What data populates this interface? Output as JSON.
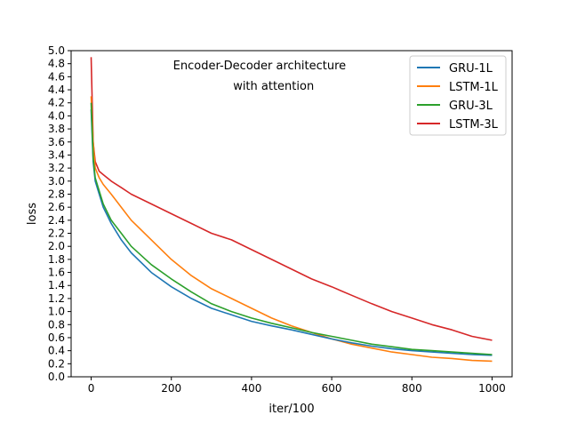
{
  "chart_data": {
    "type": "line",
    "title": "",
    "annotation_lines": [
      "Encoder-Decoder architecture",
      "with attention"
    ],
    "xlabel": "iter/100",
    "ylabel": "loss",
    "xlim": [
      -50,
      1050
    ],
    "ylim": [
      0,
      5.0
    ],
    "xticks": [
      0,
      200,
      400,
      600,
      800,
      1000
    ],
    "yticks": [
      0.0,
      0.2,
      0.4,
      0.6,
      0.8,
      1.0,
      1.2,
      1.4,
      1.6,
      1.8,
      2.0,
      2.2,
      2.4,
      2.6,
      2.8,
      3.0,
      3.2,
      3.4,
      3.6,
      3.8,
      4.0,
      4.2,
      4.4,
      4.6,
      4.8,
      5.0
    ],
    "grid": false,
    "legend_position": "top-right",
    "colors": {
      "GRU-1L": "#1f77b4",
      "LSTM-1L": "#ff7f0e",
      "GRU-3L": "#2ca02c",
      "LSTM-3L": "#d62728"
    },
    "x": [
      0,
      5,
      10,
      20,
      30,
      50,
      75,
      100,
      150,
      200,
      250,
      300,
      350,
      400,
      450,
      500,
      550,
      600,
      650,
      700,
      750,
      800,
      850,
      900,
      950,
      1000
    ],
    "series": [
      {
        "name": "GRU-1L",
        "values": [
          4.1,
          3.3,
          3.0,
          2.8,
          2.6,
          2.35,
          2.1,
          1.9,
          1.6,
          1.38,
          1.2,
          1.05,
          0.95,
          0.85,
          0.78,
          0.72,
          0.65,
          0.58,
          0.52,
          0.47,
          0.43,
          0.4,
          0.38,
          0.36,
          0.34,
          0.33
        ]
      },
      {
        "name": "LSTM-1L",
        "values": [
          4.3,
          3.6,
          3.2,
          3.05,
          2.95,
          2.8,
          2.6,
          2.4,
          2.1,
          1.8,
          1.55,
          1.35,
          1.2,
          1.05,
          0.9,
          0.78,
          0.68,
          0.58,
          0.5,
          0.44,
          0.38,
          0.34,
          0.3,
          0.28,
          0.25,
          0.24
        ]
      },
      {
        "name": "GRU-3L",
        "values": [
          4.2,
          3.35,
          3.05,
          2.85,
          2.65,
          2.4,
          2.2,
          2.0,
          1.72,
          1.5,
          1.3,
          1.12,
          1.0,
          0.9,
          0.82,
          0.75,
          0.68,
          0.62,
          0.56,
          0.5,
          0.46,
          0.42,
          0.4,
          0.38,
          0.36,
          0.34
        ]
      },
      {
        "name": "LSTM-3L",
        "values": [
          4.9,
          3.6,
          3.3,
          3.15,
          3.1,
          3.0,
          2.9,
          2.8,
          2.65,
          2.5,
          2.35,
          2.2,
          2.1,
          1.95,
          1.8,
          1.65,
          1.5,
          1.38,
          1.25,
          1.12,
          1.0,
          0.9,
          0.8,
          0.72,
          0.62,
          0.56
        ]
      }
    ]
  }
}
